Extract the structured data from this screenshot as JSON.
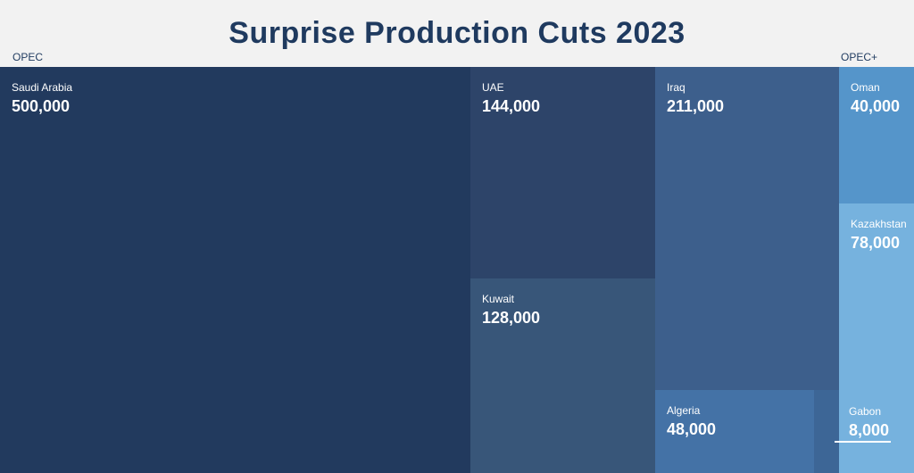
{
  "title": "Surprise Production Cuts 2023",
  "chart_data": {
    "type": "treemap",
    "title": "Surprise Production Cuts 2023",
    "groups": [
      {
        "name": "OPEC",
        "items": [
          {
            "name": "Saudi Arabia",
            "value": 500000,
            "label": "500,000",
            "color": "#223a5e"
          },
          {
            "name": "UAE",
            "value": 144000,
            "label": "144,000",
            "color": "#2d4469"
          },
          {
            "name": "Kuwait",
            "value": 128000,
            "label": "128,000",
            "color": "#385679"
          },
          {
            "name": "Iraq",
            "value": 211000,
            "label": "211,000",
            "color": "#3d5f8c"
          },
          {
            "name": "Algeria",
            "value": 48000,
            "label": "48,000",
            "color": "#4472a6"
          }
        ]
      },
      {
        "name": "OPEC+",
        "items": [
          {
            "name": "Oman",
            "value": 40000,
            "label": "40,000",
            "color": "#5595ca"
          },
          {
            "name": "Kazakhstan",
            "value": 78000,
            "label": "78,000",
            "color": "#76b2de"
          },
          {
            "name": "Gabon",
            "value": 8000,
            "label": "8,000",
            "color": "#76b2de"
          }
        ]
      }
    ]
  },
  "unlabeled_tile_color": "#3d6696"
}
